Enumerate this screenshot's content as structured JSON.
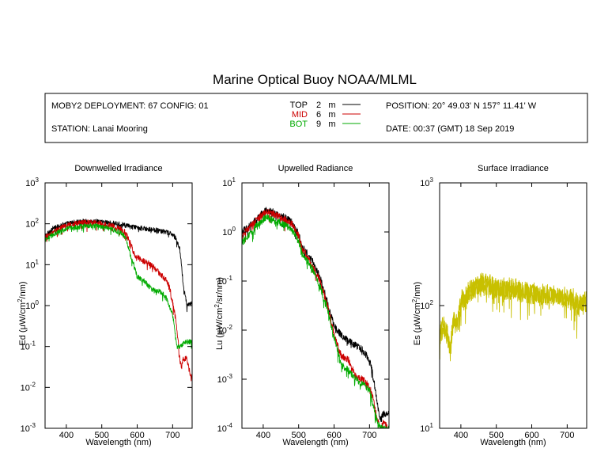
{
  "title": "Marine Optical Buoy NOAA/MLML",
  "info": {
    "deployment": "MOBY2 DEPLOYMENT: 67 CONFIG: 01",
    "station": "STATION: Lanai Mooring",
    "position": "POSITION: 20° 49.03' N   157° 11.41' W",
    "date": "DATE: 00:37 (GMT) 18 Sep 2019",
    "legend": [
      {
        "label": "TOP",
        "depth": "2",
        "unit": "m",
        "color": "#000000"
      },
      {
        "label": "MID",
        "depth": "6",
        "unit": "m",
        "color": "#cc0000"
      },
      {
        "label": "BOT",
        "depth": "9",
        "unit": "m",
        "color": "#00aa00"
      }
    ]
  },
  "colors": {
    "top": "#000000",
    "mid": "#cc0000",
    "bot": "#00aa00",
    "surface": "#c8c000"
  },
  "chart_data": [
    {
      "type": "line",
      "title": "Downwelled Irradiance",
      "xlabel": "Wavelength (nm)",
      "ylabel": {
        "pre": "Ed  (μW/cm",
        "sup": "2",
        "post": "/nm)"
      },
      "xlim": [
        340,
        755
      ],
      "ylim": [
        0.001,
        1000
      ],
      "yscale": "log",
      "xticks": [
        400,
        500,
        600,
        700
      ],
      "yticks": [
        {
          "base": "10",
          "exp": "3"
        },
        {
          "base": "10",
          "exp": "2"
        },
        {
          "base": "10",
          "exp": "1"
        },
        {
          "base": "10",
          "exp": "0"
        },
        {
          "base": "10",
          "exp": "-1"
        },
        {
          "base": "10",
          "exp": "-2"
        },
        {
          "base": "10",
          "exp": "-3"
        }
      ],
      "series": [
        {
          "name": "TOP",
          "color": "#000000",
          "noise": 0.06,
          "x": [
            340,
            360,
            380,
            400,
            420,
            440,
            460,
            480,
            500,
            520,
            540,
            560,
            580,
            600,
            620,
            640,
            660,
            680,
            700,
            710,
            720,
            725,
            730,
            740,
            750
          ],
          "y": [
            50,
            75,
            88,
            100,
            108,
            112,
            115,
            115,
            112,
            108,
            100,
            95,
            85,
            80,
            78,
            72,
            68,
            62,
            55,
            42,
            25,
            10,
            3,
            1.1,
            1.1
          ]
        },
        {
          "name": "MID",
          "color": "#cc0000",
          "noise": 0.07,
          "x": [
            340,
            360,
            380,
            400,
            420,
            440,
            460,
            480,
            500,
            520,
            540,
            560,
            570,
            580,
            590,
            600,
            620,
            640,
            660,
            680,
            690,
            700,
            710,
            715,
            720,
            725,
            730,
            740,
            750
          ],
          "y": [
            45,
            60,
            75,
            90,
            98,
            105,
            108,
            105,
            100,
            92,
            82,
            70,
            55,
            35,
            20,
            15,
            12,
            10,
            6.5,
            4.5,
            3,
            1.2,
            0.4,
            0.15,
            0.05,
            0.03,
            0.05,
            0.05,
            0.02
          ]
        },
        {
          "name": "BOT",
          "color": "#00aa00",
          "noise": 0.06,
          "x": [
            340,
            360,
            380,
            400,
            420,
            440,
            460,
            480,
            500,
            520,
            540,
            560,
            570,
            580,
            590,
            600,
            620,
            640,
            660,
            680,
            700,
            705,
            710,
            715,
            720,
            730,
            740,
            750
          ],
          "y": [
            40,
            55,
            65,
            75,
            80,
            85,
            90,
            90,
            85,
            78,
            68,
            55,
            40,
            18,
            10,
            5,
            4,
            2.5,
            2.3,
            1.7,
            0.6,
            0.3,
            0.12,
            0.1,
            0.1,
            0.12,
            0.13,
            0.13
          ]
        }
      ]
    },
    {
      "type": "line",
      "title": "Upwelled Radiance",
      "xlabel": "Wavelength (nm)",
      "ylabel": {
        "pre": "Lu  (μW/cm",
        "sup": "2",
        "post": "/sr/nm)"
      },
      "xlim": [
        340,
        755
      ],
      "ylim": [
        0.0001,
        10
      ],
      "yscale": "log",
      "xticks": [
        400,
        500,
        600,
        700
      ],
      "yticks": [
        {
          "base": "10",
          "exp": "1"
        },
        {
          "base": "10",
          "exp": "0"
        },
        {
          "base": "10",
          "exp": "-1"
        },
        {
          "base": "10",
          "exp": "-2"
        },
        {
          "base": "10",
          "exp": "-3"
        },
        {
          "base": "10",
          "exp": "-4"
        }
      ],
      "series": [
        {
          "name": "TOP",
          "color": "#000000",
          "noise": 0.07,
          "x": [
            340,
            360,
            380,
            400,
            410,
            420,
            440,
            460,
            480,
            500,
            510,
            520,
            540,
            560,
            580,
            600,
            620,
            640,
            660,
            680,
            700,
            710,
            720,
            730,
            740,
            750
          ],
          "y": [
            1,
            1.3,
            1.8,
            2.5,
            2.8,
            2.7,
            2.3,
            2,
            1.6,
            0.9,
            0.5,
            0.4,
            0.25,
            0.12,
            0.04,
            0.012,
            0.008,
            0.006,
            0.005,
            0.004,
            0.0025,
            0.0012,
            0.0004,
            0.00015,
            0.0002,
            0.0002
          ]
        },
        {
          "name": "MID",
          "color": "#cc0000",
          "noise": 0.07,
          "x": [
            340,
            360,
            380,
            400,
            410,
            420,
            440,
            460,
            480,
            500,
            510,
            520,
            540,
            560,
            580,
            600,
            620,
            640,
            660,
            680,
            700,
            710,
            720,
            730,
            740,
            750
          ],
          "y": [
            0.9,
            1.2,
            1.7,
            2.4,
            2.6,
            2.5,
            2.1,
            1.8,
            1.5,
            0.85,
            0.45,
            0.35,
            0.2,
            0.1,
            0.035,
            0.008,
            0.003,
            0.0025,
            0.0012,
            0.001,
            0.0007,
            0.0004,
            0.00018,
            0.0001,
            0.00015,
            0.0001
          ]
        },
        {
          "name": "BOT",
          "color": "#00aa00",
          "noise": 0.07,
          "x": [
            340,
            360,
            380,
            400,
            410,
            420,
            440,
            460,
            480,
            500,
            510,
            520,
            540,
            560,
            580,
            600,
            620,
            640,
            660,
            680,
            700,
            710,
            720,
            730,
            740,
            750
          ],
          "y": [
            0.6,
            0.9,
            1.3,
            1.8,
            2,
            1.8,
            1.6,
            1.4,
            1.1,
            0.7,
            0.35,
            0.3,
            0.17,
            0.08,
            0.03,
            0.007,
            0.002,
            0.0015,
            0.001,
            0.0008,
            0.0006,
            0.0003,
            0.00015,
            0.0001,
            0.0001,
            0.0001
          ]
        }
      ]
    },
    {
      "type": "line",
      "title": "Surface Irradiance",
      "xlabel": "Wavelength (nm)",
      "ylabel": {
        "pre": "Es  (μW/cm",
        "sup": "2",
        "post": "/nm)"
      },
      "xlim": [
        340,
        755
      ],
      "ylim": [
        10,
        1000
      ],
      "yscale": "log",
      "xticks": [
        400,
        500,
        600,
        700
      ],
      "yticks": [
        {
          "base": "10",
          "exp": "3"
        },
        {
          "base": "10",
          "exp": "2"
        },
        {
          "base": "10",
          "exp": "1"
        }
      ],
      "series": [
        {
          "name": "Surface",
          "color": "#c8c000",
          "noise": 0.08,
          "x": [
            340,
            350,
            360,
            370,
            380,
            390,
            400,
            410,
            420,
            440,
            460,
            480,
            500,
            520,
            540,
            560,
            580,
            600,
            620,
            640,
            660,
            680,
            700,
            720,
            730,
            740,
            750
          ],
          "y": [
            55,
            75,
            62,
            45,
            80,
            70,
            110,
            120,
            130,
            145,
            155,
            150,
            145,
            142,
            140,
            138,
            132,
            130,
            125,
            125,
            125,
            120,
            118,
            115,
            100,
            105,
            110
          ]
        },
        {
          "name": "Surface",
          "color": "#c8c000",
          "noise": 0.08,
          "x": [
            340,
            350,
            360,
            370,
            380,
            390,
            400,
            410,
            420,
            440,
            460,
            480,
            500,
            520,
            540,
            560,
            580,
            600,
            620,
            640,
            660,
            680,
            700,
            720,
            730,
            740,
            750
          ],
          "y": [
            50,
            70,
            58,
            42,
            75,
            66,
            104,
            114,
            124,
            138,
            148,
            143,
            138,
            135,
            133,
            131,
            126,
            123,
            119,
            119,
            119,
            114,
            112,
            109,
            95,
            99,
            104
          ]
        }
      ]
    }
  ]
}
